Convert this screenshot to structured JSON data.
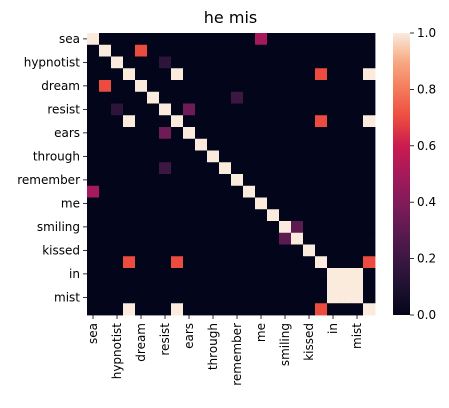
{
  "chart_data": {
    "type": "heatmap",
    "title": "he mis",
    "xlabel": "",
    "ylabel": "",
    "x_labels": [
      "sea",
      "hypnotist",
      "dream",
      "resist",
      "ears",
      "through",
      "remember",
      "me",
      "smiling",
      "kissed",
      "in",
      "mist"
    ],
    "y_labels": [
      "sea",
      "hypnotist",
      "dream",
      "resist",
      "ears",
      "through",
      "remember",
      "me",
      "smiling",
      "kissed",
      "in",
      "mist"
    ],
    "columns": [
      "sea",
      "",
      "hypnotist",
      "",
      "dream",
      "",
      "resist",
      "",
      "ears",
      "",
      "through",
      "",
      "remember",
      "",
      "me",
      "",
      "smiling",
      "",
      "kissed",
      "",
      "in",
      "",
      "mist",
      ""
    ],
    "rows": [
      "sea",
      "",
      "hypnotist",
      "",
      "dream",
      "",
      "resist",
      "",
      "ears",
      "",
      "through",
      "",
      "remember",
      "",
      "me",
      "",
      "smiling",
      "",
      "kissed",
      "",
      "in",
      "",
      "mist",
      ""
    ],
    "colorbar": {
      "min": 0.0,
      "max": 1.0,
      "ticks": [
        "0.0",
        "0.2",
        "0.4",
        "0.6",
        "0.8",
        "1.0"
      ]
    },
    "cells": [
      [
        0,
        0,
        1.0
      ],
      [
        0,
        14,
        0.5
      ],
      [
        1,
        1,
        1.0
      ],
      [
        1,
        4,
        0.7
      ],
      [
        2,
        2,
        1.0
      ],
      [
        2,
        6,
        0.15
      ],
      [
        3,
        3,
        1.0
      ],
      [
        3,
        7,
        1.0
      ],
      [
        3,
        19,
        0.7
      ],
      [
        3,
        23,
        1.0
      ],
      [
        4,
        1,
        0.7
      ],
      [
        4,
        4,
        1.0
      ],
      [
        5,
        5,
        1.0
      ],
      [
        5,
        12,
        0.2
      ],
      [
        6,
        2,
        0.15
      ],
      [
        6,
        6,
        1.0
      ],
      [
        6,
        8,
        0.35
      ],
      [
        7,
        3,
        1.0
      ],
      [
        7,
        7,
        1.0
      ],
      [
        7,
        19,
        0.7
      ],
      [
        7,
        23,
        1.0
      ],
      [
        8,
        6,
        0.35
      ],
      [
        8,
        8,
        1.0
      ],
      [
        9,
        9,
        1.0
      ],
      [
        10,
        10,
        1.0
      ],
      [
        11,
        6,
        0.2
      ],
      [
        11,
        11,
        1.0
      ],
      [
        12,
        12,
        1.0
      ],
      [
        13,
        0,
        0.5
      ],
      [
        13,
        13,
        1.0
      ],
      [
        14,
        14,
        1.0
      ],
      [
        15,
        15,
        1.0
      ],
      [
        16,
        16,
        1.0
      ],
      [
        16,
        17,
        0.3
      ],
      [
        17,
        16,
        0.3
      ],
      [
        17,
        17,
        1.0
      ],
      [
        18,
        18,
        1.0
      ],
      [
        19,
        3,
        0.7
      ],
      [
        19,
        7,
        0.7
      ],
      [
        19,
        19,
        1.0
      ],
      [
        19,
        23,
        0.7
      ],
      [
        20,
        20,
        1.0
      ],
      [
        20,
        21,
        1.0
      ],
      [
        20,
        22,
        1.0
      ],
      [
        21,
        20,
        1.0
      ],
      [
        21,
        21,
        1.0
      ],
      [
        21,
        22,
        1.0
      ],
      [
        22,
        20,
        1.0
      ],
      [
        22,
        21,
        1.0
      ],
      [
        22,
        22,
        1.0
      ],
      [
        23,
        3,
        1.0
      ],
      [
        23,
        7,
        1.0
      ],
      [
        23,
        19,
        0.7
      ],
      [
        23,
        23,
        1.0
      ]
    ]
  }
}
